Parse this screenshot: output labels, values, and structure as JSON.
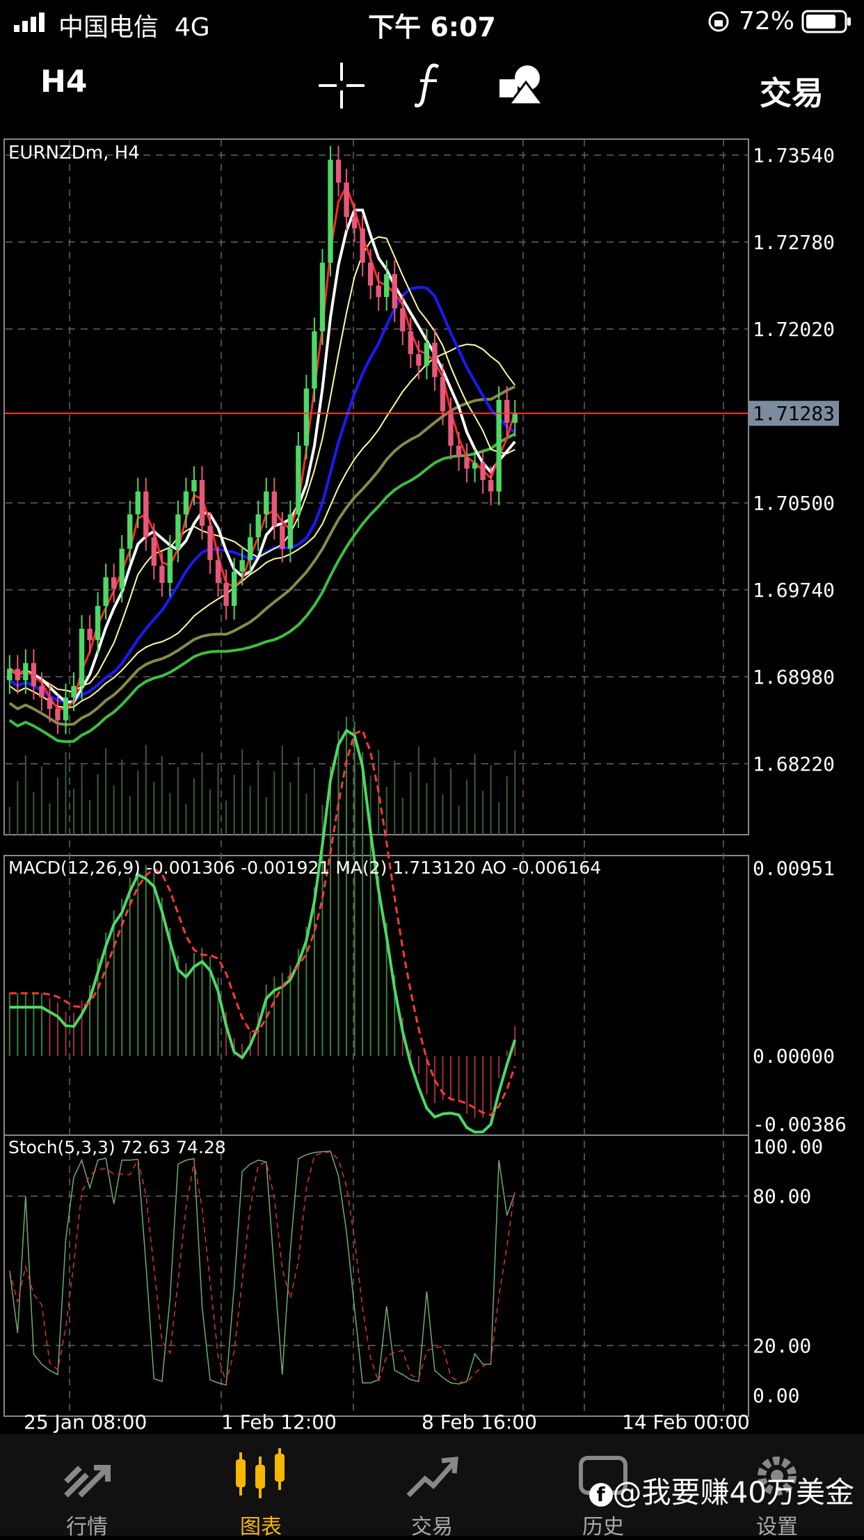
{
  "status_bar": {
    "carrier": "中国电信",
    "network": "4G",
    "time": "下午 6:07",
    "battery": "72%"
  },
  "toolbar": {
    "timeframe": "H4",
    "trade_label": "交易",
    "icons": [
      "crosshair-icon",
      "function-icon",
      "objects-icon"
    ]
  },
  "chart": {
    "symbol_label": "EURNZDm, H4",
    "current_price": "1.71283",
    "price_ticks": [
      "1.73540",
      "1.72780",
      "1.72020",
      "1.70500",
      "1.69740",
      "1.68980",
      "1.68220"
    ],
    "macd_label": "MACD(12,26,9) -0.001306 -0.001921 MA(2) 1.713120 AO -0.006164",
    "macd_ticks": [
      "0.00951",
      "0.00000",
      "-0.00386"
    ],
    "stoch_label": "Stoch(5,3,3) 72.63 74.28",
    "stoch_ticks": [
      "100.00",
      "80.00",
      "20.00",
      "0.00"
    ],
    "date_ticks": [
      "25 Jan 08:00",
      "1 Feb 12:00",
      "8 Feb 16:00",
      "14 Feb 00:00"
    ],
    "colors": {
      "bull": "#4cd964",
      "bear": "#e8577a",
      "ma_red": "#ff2a2a",
      "ma_white": "#ffffff",
      "ma_blue": "#1a1aff",
      "ma_yellow": "#ffffa0",
      "ma_olive": "#8a8a4a",
      "ma_green": "#3fbf3f",
      "price_line": "#ff3b30",
      "grid": "#666666"
    }
  },
  "chart_data": {
    "type": "candlestick",
    "symbol": "EURNZDm",
    "timeframe": "H4",
    "ylim": [
      1.676,
      1.7368
    ],
    "close_series": [
      1.6905,
      1.6895,
      1.691,
      1.689,
      1.688,
      1.687,
      1.686,
      1.688,
      1.689,
      1.694,
      1.693,
      1.696,
      1.6985,
      1.6975,
      1.701,
      1.704,
      1.706,
      1.702,
      1.6995,
      1.698,
      1.701,
      1.704,
      1.706,
      1.707,
      1.703,
      1.7,
      1.698,
      1.696,
      1.699,
      1.7,
      1.702,
      1.704,
      1.706,
      1.703,
      1.701,
      1.704,
      1.71,
      1.715,
      1.72,
      1.726,
      1.735,
      1.733,
      1.73,
      1.729,
      1.726,
      1.724,
      1.723,
      1.725,
      1.722,
      1.72,
      1.718,
      1.717,
      1.719,
      1.716,
      1.713,
      1.71,
      1.709,
      1.708,
      1.7085,
      1.707,
      1.706,
      1.714,
      1.712,
      1.7128
    ],
    "last_price": 1.71283,
    "macd": {
      "main": -0.001306,
      "signal": -0.001921,
      "ma2": 1.71312,
      "ao": -0.006164
    },
    "stoch": {
      "k": 72.63,
      "d": 74.28
    }
  },
  "tabs": [
    {
      "label": "行情",
      "icon": "quotes-icon"
    },
    {
      "label": "图表",
      "icon": "chart-icon",
      "active": true
    },
    {
      "label": "交易",
      "icon": "trade-icon"
    },
    {
      "label": "历史",
      "icon": "history-icon"
    },
    {
      "label": "设置",
      "icon": "settings-icon"
    }
  ],
  "watermark": "@我要赚40万美金"
}
